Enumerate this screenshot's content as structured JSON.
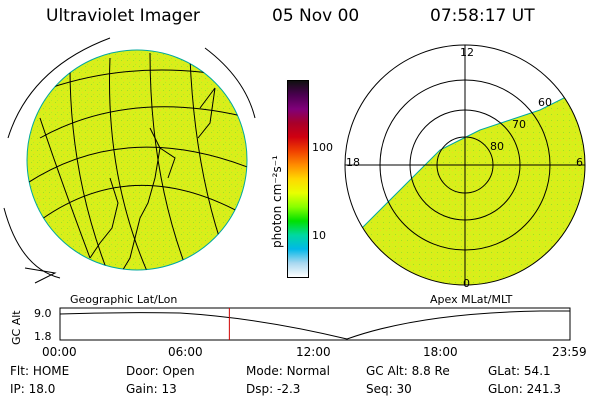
{
  "header": {
    "instrument": "Ultraviolet Imager",
    "date": "05 Nov 00",
    "time": "07:58:17 UT"
  },
  "colorbar": {
    "unit_label": "photon cm⁻²s⁻¹",
    "ticks": [
      "100",
      "10"
    ],
    "colors": [
      "#101010",
      "#4a0050",
      "#80007a",
      "#a8002a",
      "#d00010",
      "#f04000",
      "#ff8c00",
      "#ffd800",
      "#e8ff00",
      "#88ff00",
      "#00e000",
      "#00d8a0",
      "#00b8e8",
      "#a8d8f0",
      "#ffffff"
    ]
  },
  "left_map": {
    "caption": "Geographic Lat/Lon",
    "fill_color": "#d8ef1a"
  },
  "right_map": {
    "caption": "Apex MLat/MLT",
    "fill_color": "#d8ef1a",
    "mlt_labels": {
      "top": "12",
      "left": "18",
      "right": "6",
      "bottom": "0"
    },
    "lat_labels": [
      "60",
      "70",
      "80"
    ]
  },
  "timeline": {
    "y_axis_label": "GC Alt",
    "y_ticks": [
      "9.0",
      "1.8"
    ],
    "x_ticks": [
      "00:00",
      "06:00",
      "12:00",
      "18:00",
      "23:59"
    ],
    "marker_time_hours": 7.97
  },
  "status": {
    "row1": [
      {
        "label": "Flt:",
        "value": "HOME"
      },
      {
        "label": "Door:",
        "value": "Open"
      },
      {
        "label": "Mode:",
        "value": "Normal"
      },
      {
        "label": "GC Alt:",
        "value": "8.8 Re"
      },
      {
        "label": "GLat:",
        "value": "54.1"
      }
    ],
    "row2": [
      {
        "label": "IP:",
        "value": "18.0"
      },
      {
        "label": "Gain:",
        "value": "13"
      },
      {
        "label": "Dsp:",
        "value": "-2.3"
      },
      {
        "label": "Seq:",
        "value": "30"
      },
      {
        "label": "GLon:",
        "value": "241.3"
      }
    ]
  }
}
